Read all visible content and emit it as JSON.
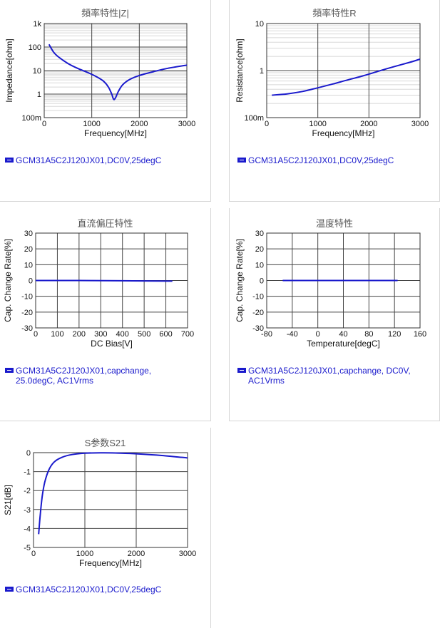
{
  "chart_data": [
    {
      "id": "c1",
      "type": "line",
      "title": "頻率特性|Z|",
      "xlabel": "Frequency[MHz]",
      "ylabel": "Impedance[ohm]",
      "xlim": [
        0,
        3000
      ],
      "ylim": [
        0.1,
        1000
      ],
      "yscale": "log",
      "xticks": [
        0,
        1000,
        2000,
        3000
      ],
      "xtick_labels": [
        "0",
        "1000",
        "2000",
        "3000"
      ],
      "yticks": [
        0.1,
        1,
        10,
        100,
        1000
      ],
      "ytick_labels": [
        "100m",
        "1",
        "10",
        "100",
        "1k"
      ],
      "grid": true,
      "series": [
        {
          "name": "GCM31A5C2J120JX01,DC0V,25degC",
          "color": "#1a1acc",
          "x": [
            100,
            200,
            300,
            500,
            700,
            900,
            1100,
            1250,
            1350,
            1420,
            1460,
            1500,
            1560,
            1650,
            1800,
            2000,
            2300,
            2600,
            3000
          ],
          "y": [
            130,
            60,
            38,
            20,
            12.5,
            8.5,
            5.5,
            3.5,
            2.0,
            1.0,
            0.6,
            0.7,
            1.3,
            2.5,
            4.2,
            6.2,
            9.0,
            12.5,
            17
          ]
        }
      ],
      "legend": [
        "GCM31A5C2J120JX01,DC0V,25degC"
      ]
    },
    {
      "id": "c2",
      "type": "line",
      "title": "頻率特性R",
      "xlabel": "Frequency[MHz]",
      "ylabel": "Resistance[ohm]",
      "xlim": [
        0,
        3000
      ],
      "ylim": [
        0.1,
        10
      ],
      "yscale": "log",
      "xticks": [
        0,
        1000,
        2000,
        3000
      ],
      "xtick_labels": [
        "0",
        "1000",
        "2000",
        "3000"
      ],
      "yticks": [
        0.1,
        1,
        10
      ],
      "ytick_labels": [
        "100m",
        "1",
        "10"
      ],
      "grid": true,
      "series": [
        {
          "name": "GCM31A5C2J120JX01,DC0V,25degC",
          "color": "#1a1acc",
          "x": [
            100,
            400,
            700,
            1000,
            1300,
            1600,
            1900,
            2200,
            2500,
            2800,
            3000
          ],
          "y": [
            0.3,
            0.32,
            0.36,
            0.43,
            0.52,
            0.64,
            0.78,
            0.98,
            1.22,
            1.5,
            1.75
          ]
        }
      ],
      "legend": [
        "GCM31A5C2J120JX01,DC0V,25degC"
      ]
    },
    {
      "id": "c3",
      "type": "line",
      "title": "直流偏圧特性",
      "xlabel": "DC Bias[V]",
      "ylabel": "Cap. Change Rate[%]",
      "xlim": [
        0,
        700
      ],
      "ylim": [
        -30,
        30
      ],
      "yscale": "linear",
      "xticks": [
        0,
        100,
        200,
        300,
        400,
        500,
        600,
        700
      ],
      "xtick_labels": [
        "0",
        "100",
        "200",
        "300",
        "400",
        "500",
        "600",
        "700"
      ],
      "yticks": [
        -30,
        -20,
        -10,
        0,
        10,
        20,
        30
      ],
      "ytick_labels": [
        "-30",
        "-20",
        "-10",
        "0",
        "10",
        "20",
        "30"
      ],
      "grid": true,
      "series": [
        {
          "name": "GCM31A5C2J120JX01,capchange, 25.0degC, AC1Vrms",
          "color": "#1a1acc",
          "x": [
            0,
            200,
            400,
            630
          ],
          "y": [
            0,
            0,
            -0.2,
            -0.4
          ]
        }
      ],
      "legend": [
        "GCM31A5C2J120JX01,capchange,",
        "25.0degC, AC1Vrms"
      ]
    },
    {
      "id": "c4",
      "type": "line",
      "title": "温度特性",
      "xlabel": "Temperature[degC]",
      "ylabel": "Cap. Change Rate[%]",
      "xlim": [
        -80,
        160
      ],
      "ylim": [
        -30,
        30
      ],
      "yscale": "linear",
      "xticks": [
        -80,
        -40,
        0,
        40,
        80,
        120,
        160
      ],
      "xtick_labels": [
        "-80",
        "-40",
        "0",
        "40",
        "80",
        "120",
        "160"
      ],
      "yticks": [
        -30,
        -20,
        -10,
        0,
        10,
        20,
        30
      ],
      "ytick_labels": [
        "-30",
        "-20",
        "-10",
        "0",
        "10",
        "20",
        "30"
      ],
      "grid": true,
      "series": [
        {
          "name": "GCM31A5C2J120JX01,capchange, DC0V, AC1Vrms",
          "color": "#1a1acc",
          "x": [
            -55,
            25,
            125
          ],
          "y": [
            0,
            0,
            0
          ]
        }
      ],
      "legend": [
        "GCM31A5C2J120JX01,capchange, DC0V,",
        "AC1Vrms"
      ]
    },
    {
      "id": "c5",
      "type": "line",
      "title": "S参数S21",
      "xlabel": "Frequency[MHz]",
      "ylabel": "S21[dB]",
      "xlim": [
        0,
        3000
      ],
      "ylim": [
        -5,
        0
      ],
      "yscale": "linear",
      "xticks": [
        0,
        1000,
        2000,
        3000
      ],
      "xtick_labels": [
        "0",
        "1000",
        "2000",
        "3000"
      ],
      "yticks": [
        -5,
        -4,
        -3,
        -2,
        -1,
        0
      ],
      "ytick_labels": [
        "-5",
        "-4",
        "-3",
        "-2",
        "-1",
        "0"
      ],
      "grid": true,
      "series": [
        {
          "name": "GCM31A5C2J120JX01,DC0V,25degC",
          "color": "#1a1acc",
          "x": [
            100,
            130,
            170,
            220,
            300,
            400,
            550,
            750,
            1000,
            1300,
            1600,
            2000,
            2500,
            3000
          ],
          "y": [
            -4.3,
            -3.3,
            -2.3,
            -1.55,
            -0.9,
            -0.5,
            -0.25,
            -0.1,
            -0.03,
            -0.01,
            -0.02,
            -0.06,
            -0.15,
            -0.28
          ]
        }
      ],
      "legend": [
        "GCM31A5C2J120JX01,DC0V,25degC"
      ]
    }
  ]
}
